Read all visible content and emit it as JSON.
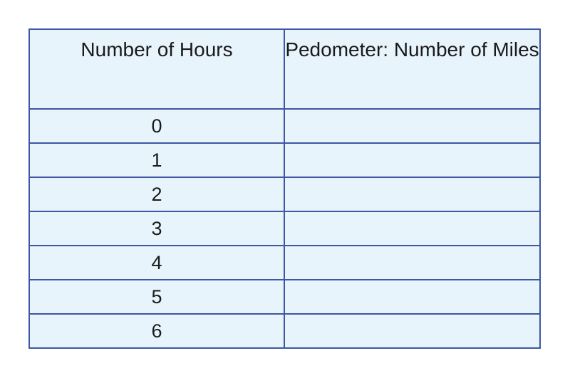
{
  "table": {
    "headers": [
      "Number of Hours",
      "Pedometer: Number of Miles"
    ],
    "rows": [
      [
        "0",
        ""
      ],
      [
        "1",
        ""
      ],
      [
        "2",
        ""
      ],
      [
        "3",
        ""
      ],
      [
        "4",
        ""
      ],
      [
        "5",
        ""
      ],
      [
        "6",
        ""
      ]
    ]
  },
  "colors": {
    "border": "#3e56a3",
    "cell_background": "#e8f4fc",
    "text": "#1a1a1a"
  }
}
